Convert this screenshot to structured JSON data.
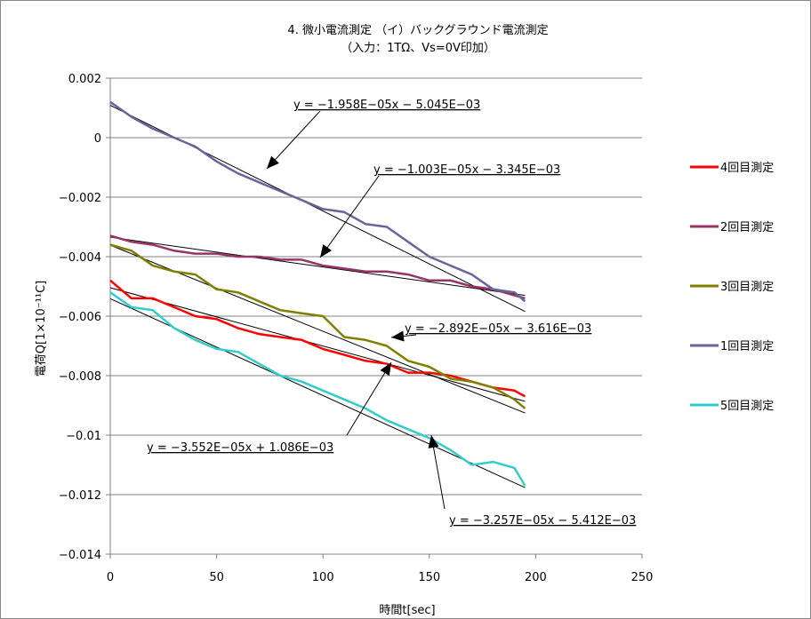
{
  "chart_data": {
    "type": "line",
    "title": "4. 微小電流測定 （イ）バックグラウンド電流測定",
    "subtitle": "（入力：1TΩ、Vs=0V印加）",
    "xlabel": "時間t[sec]",
    "ylabel": "電荷Q[1×10⁻¹¹C]",
    "xlim": [
      0,
      250
    ],
    "ylim": [
      -0.014,
      0.002
    ],
    "xticks": [
      0,
      50,
      100,
      150,
      200,
      250
    ],
    "yticks": [
      0.002,
      0,
      -0.002,
      -0.004,
      -0.006,
      -0.008,
      -0.01,
      -0.012,
      -0.014
    ],
    "xtick_labels": [
      "0",
      "50",
      "100",
      "150",
      "200",
      "250"
    ],
    "ytick_labels": [
      "0.002",
      "0",
      "−0.002",
      "−0.004",
      "−0.006",
      "−0.008",
      "−0.01",
      "−0.012",
      "−0.014"
    ],
    "grid": "horizontal",
    "legend_position": "right",
    "x": [
      0,
      10,
      20,
      30,
      40,
      50,
      60,
      70,
      80,
      90,
      100,
      110,
      120,
      130,
      140,
      150,
      160,
      170,
      180,
      190,
      195
    ],
    "series": [
      {
        "name": "4回目測定",
        "color": "#ff0000",
        "values": [
          -0.0048,
          -0.0054,
          -0.0054,
          -0.0057,
          -0.006,
          -0.0061,
          -0.0064,
          -0.0066,
          -0.0067,
          -0.0068,
          -0.0071,
          -0.0073,
          -0.0075,
          -0.0076,
          -0.0079,
          -0.0079,
          -0.008,
          -0.0082,
          -0.0084,
          -0.0085,
          -0.0087
        ],
        "trendline": {
          "label": "y = −1.958E−05x − 5.045E−03",
          "slope": -1.958e-05,
          "intercept": -0.005045
        }
      },
      {
        "name": "2回目測定",
        "color": "#993366",
        "values": [
          -0.0033,
          -0.0035,
          -0.0036,
          -0.0038,
          -0.0039,
          -0.0039,
          -0.004,
          -0.004,
          -0.0041,
          -0.0041,
          -0.0043,
          -0.0044,
          -0.0045,
          -0.0045,
          -0.0046,
          -0.0048,
          -0.0048,
          -0.005,
          -0.0051,
          -0.0053,
          -0.0054
        ],
        "trendline": {
          "label": "y = −1.003E−05x − 3.345E−03",
          "slope": -1.003e-05,
          "intercept": -0.003345
        }
      },
      {
        "name": "3回目測定",
        "color": "#808000",
        "values": [
          -0.0036,
          -0.0038,
          -0.0043,
          -0.0045,
          -0.0046,
          -0.0051,
          -0.0052,
          -0.0055,
          -0.0058,
          -0.0059,
          -0.006,
          -0.0067,
          -0.0068,
          -0.007,
          -0.0075,
          -0.0077,
          -0.0081,
          -0.0082,
          -0.0084,
          -0.0088,
          -0.0091
        ],
        "trendline": {
          "label": "y = −2.892E−05x − 3.616E−03",
          "slope": -2.892e-05,
          "intercept": -0.003616
        }
      },
      {
        "name": "1回目測定",
        "color": "#666699",
        "values": [
          0.0012,
          0.0007,
          0.0003,
          0.0,
          -0.0003,
          -0.0008,
          -0.0012,
          -0.0015,
          -0.0018,
          -0.0021,
          -0.0024,
          -0.0025,
          -0.0029,
          -0.003,
          -0.0035,
          -0.004,
          -0.0043,
          -0.0046,
          -0.0051,
          -0.0052,
          -0.0055
        ],
        "trendline": {
          "label": "y = −3.552E−05x + 1.086E−03",
          "slope": -3.552e-05,
          "intercept": 0.001086
        }
      },
      {
        "name": "5回目測定",
        "color": "#33cccc",
        "values": [
          -0.0052,
          -0.0057,
          -0.0058,
          -0.0064,
          -0.0068,
          -0.0071,
          -0.0072,
          -0.0076,
          -0.008,
          -0.0082,
          -0.0085,
          -0.0088,
          -0.0091,
          -0.0095,
          -0.0098,
          -0.0101,
          -0.0105,
          -0.011,
          -0.0109,
          -0.0111,
          -0.0117
        ],
        "trendline": {
          "label": "y = −3.257E−05x − 5.412E−03",
          "slope": -3.257e-05,
          "intercept": -0.005412
        }
      }
    ]
  }
}
